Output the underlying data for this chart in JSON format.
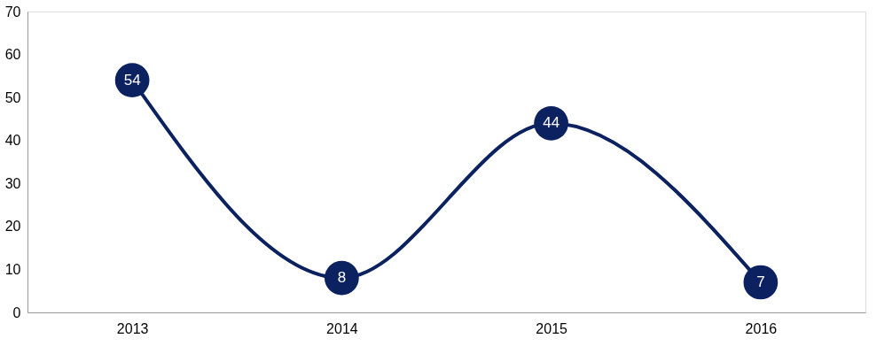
{
  "chart_data": {
    "type": "line",
    "categories": [
      "2013",
      "2014",
      "2015",
      "2016"
    ],
    "series": [
      {
        "color": "#0b2160",
        "values": [
          54,
          8,
          44,
          7
        ]
      }
    ],
    "ylim": [
      0,
      70
    ],
    "yticks": [
      0,
      10,
      20,
      30,
      40,
      50,
      60,
      70
    ],
    "grid": false,
    "legend": false,
    "marker": "circle",
    "line_style": "solid",
    "data_labels": true
  }
}
